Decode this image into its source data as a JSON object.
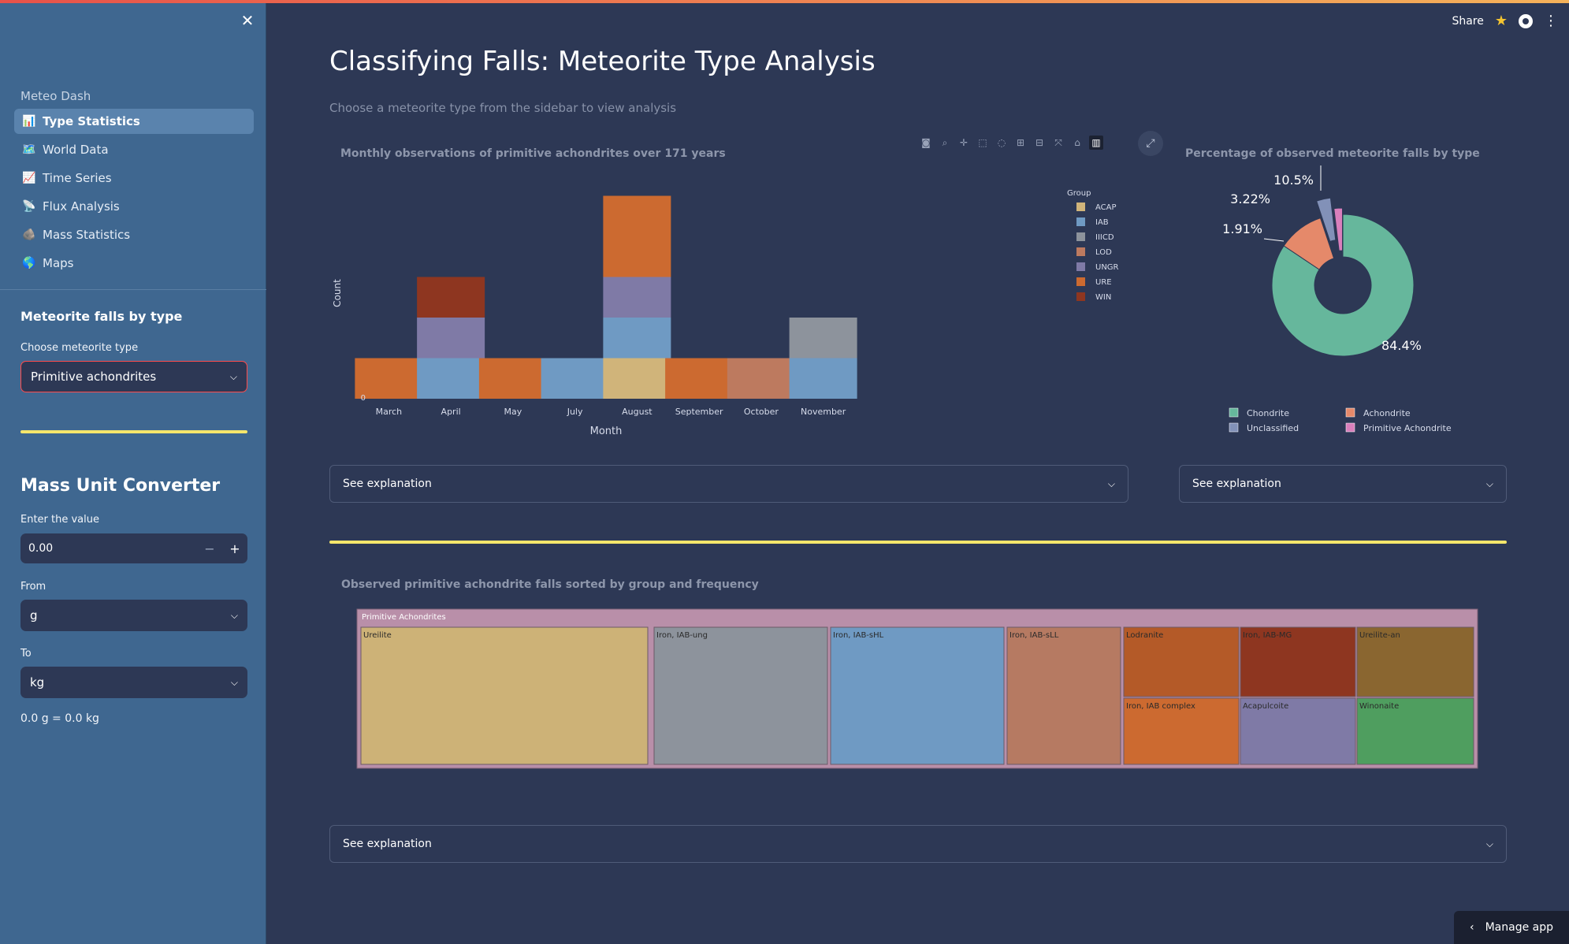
{
  "sidebar": {
    "nav_head": "Meteo Dash",
    "items": [
      {
        "label": "Type Statistics",
        "icon": "📊",
        "active": true
      },
      {
        "label": "World Data",
        "icon": "🗺️"
      },
      {
        "label": "Time Series",
        "icon": "📈"
      },
      {
        "label": "Flux Analysis",
        "icon": "📡"
      },
      {
        "label": "Mass Statistics",
        "icon": "🪨"
      },
      {
        "label": "Maps",
        "icon": "🌎"
      }
    ],
    "section_title": "Meteorite falls by type",
    "choose_label": "Choose meteorite type",
    "choose_value": "Primitive achondrites",
    "converter_title": "Mass Unit Converter",
    "value_label": "Enter the value",
    "value": "0.00",
    "from_label": "From",
    "from_value": "g",
    "to_label": "To",
    "to_value": "kg",
    "result": "0.0 g = 0.0 kg"
  },
  "topbar": {
    "share": "Share"
  },
  "main": {
    "title": "Classifying Falls: Meteorite Type Analysis",
    "subtitle": "Choose a meteorite type from the sidebar to view analysis",
    "explain": "See explanation",
    "manage": "Manage app"
  },
  "chart_data": [
    {
      "type": "bar",
      "title": "Monthly observations of primitive achondrites over 171 years",
      "xlabel": "Month",
      "ylabel": "Count",
      "ytick": "0",
      "legend_title": "Group",
      "categories": [
        "March",
        "April",
        "May",
        "July",
        "August",
        "September",
        "October",
        "November"
      ],
      "series": [
        {
          "name": "ACAP",
          "color": "#d0b47a",
          "values": [
            0,
            0,
            0,
            0,
            1,
            0,
            0,
            0
          ]
        },
        {
          "name": "IAB",
          "color": "#6f9ac3",
          "values": [
            0,
            1,
            0,
            1,
            1,
            0,
            0,
            1
          ]
        },
        {
          "name": "IIICD",
          "color": "#8d939c",
          "values": [
            0,
            0,
            0,
            0,
            0,
            0,
            0,
            1
          ]
        },
        {
          "name": "LOD",
          "color": "#bd7a5f",
          "values": [
            0,
            0,
            0,
            0,
            0,
            0,
            1,
            0
          ]
        },
        {
          "name": "UNGR",
          "color": "#7f7aa6",
          "values": [
            0,
            1,
            0,
            0,
            1,
            0,
            0,
            0
          ]
        },
        {
          "name": "URE",
          "color": "#cc6a30",
          "values": [
            1,
            0,
            1,
            0,
            2,
            1,
            0,
            0
          ]
        },
        {
          "name": "WIN",
          "color": "#8e3620",
          "values": [
            0,
            1,
            0,
            0,
            0,
            0,
            0,
            0
          ]
        }
      ]
    },
    {
      "type": "pie",
      "title": "Percentage of observed meteorite falls by type",
      "slices": [
        {
          "name": "Chondrite",
          "value": 84.4,
          "label": "84.4%",
          "color": "#66b79c"
        },
        {
          "name": "Achondrite",
          "value": 10.5,
          "label": "10.5%",
          "color": "#e5896a"
        },
        {
          "name": "Unclassified",
          "value": 3.22,
          "label": "3.22%",
          "color": "#8291b8"
        },
        {
          "name": "Primitive Achondrite",
          "value": 1.91,
          "label": "1.91%",
          "color": "#d97fbc"
        }
      ]
    },
    {
      "type": "treemap",
      "title": "Observed primitive achondrite falls sorted by group and frequency",
      "root": "Primitive Achondrites",
      "cells": [
        {
          "name": "Ureilite",
          "color": "#cdb277"
        },
        {
          "name": "Iron, IAB-ung",
          "color": "#8d939c"
        },
        {
          "name": "Iron, IAB-sHL",
          "color": "#6f9ac3"
        },
        {
          "name": "Iron, IAB-sLL",
          "color": "#b67a62"
        },
        {
          "name": "Lodranite",
          "color": "#b45a28"
        },
        {
          "name": "Iron, IAB-MG",
          "color": "#8e3620"
        },
        {
          "name": "Ureilite-an",
          "color": "#8a6630"
        },
        {
          "name": "Iron, IAB complex",
          "color": "#cc6a30"
        },
        {
          "name": "Acapulcoite",
          "color": "#7f7aa6"
        },
        {
          "name": "Winonaite",
          "color": "#4f9e5f"
        }
      ]
    }
  ]
}
